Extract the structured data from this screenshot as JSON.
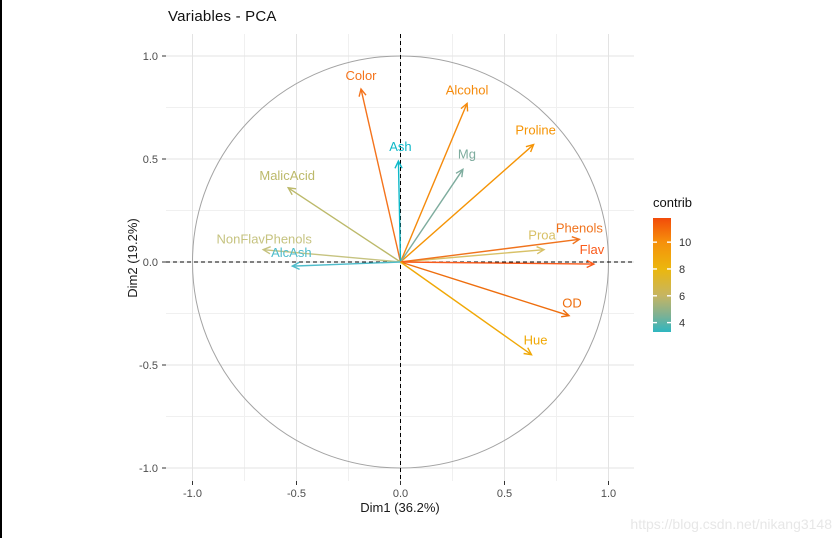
{
  "title": "Variables - PCA",
  "watermark": "https://blog.csdn.net/nikang3148",
  "chart_data": {
    "type": "scatter",
    "subtype": "pca-variable-correlation-circle",
    "title": "Variables - PCA",
    "xlabel": "Dim1 (36.2%)",
    "ylabel": "Dim2 (19.2%)",
    "xlim": [
      -1.13,
      1.12
    ],
    "ylim": [
      -1.07,
      1.11
    ],
    "grid": {
      "major": [
        -1.0,
        -0.5,
        0.0,
        0.5,
        1.0
      ],
      "minor": [
        -0.75,
        -0.25,
        0.25,
        0.75
      ]
    },
    "unit_circle": true,
    "zero_lines_dashed": true,
    "axes": {
      "x": {
        "ticks": [
          -1.0,
          -0.5,
          0.0,
          0.5,
          1.0
        ],
        "tick_labels": [
          "-1.0",
          "-0.5",
          "0.0",
          "0.5",
          "1.0"
        ]
      },
      "y": {
        "ticks": [
          1.0,
          0.5,
          0.0,
          -0.5,
          -1.0
        ],
        "tick_labels": [
          "1.0",
          "0.5",
          "0.0",
          "-0.5",
          "-1.0"
        ]
      }
    },
    "vectors": [
      {
        "name": "Color",
        "x": -0.19,
        "y": 0.84,
        "color": "#F4731C",
        "ldx": 0,
        "ldy": -9
      },
      {
        "name": "Alcohol",
        "x": 0.32,
        "y": 0.77,
        "color": "#F58A0B",
        "ldx": 0,
        "ldy": -9
      },
      {
        "name": "Proline",
        "x": 0.64,
        "y": 0.57,
        "color": "#F59405",
        "ldx": 2,
        "ldy": -10
      },
      {
        "name": "Ash",
        "x": -0.01,
        "y": 0.49,
        "color": "#0EB8C8",
        "ldx": 2,
        "ldy": -10
      },
      {
        "name": "Mg",
        "x": 0.3,
        "y": 0.45,
        "color": "#7EAC9E",
        "ldx": 4,
        "ldy": -11
      },
      {
        "name": "MalicAcid",
        "x": -0.54,
        "y": 0.36,
        "color": "#BCB96A",
        "ldx": -1,
        "ldy": -8
      },
      {
        "name": "NonFlavPhenols",
        "x": -0.66,
        "y": 0.06,
        "color": "#C6C380",
        "ldx": 1,
        "ldy": -6
      },
      {
        "name": "AlcAsh",
        "x": -0.52,
        "y": -0.02,
        "color": "#4FBCCB",
        "ldx": -1,
        "ldy": -9
      },
      {
        "name": "Proa",
        "x": 0.69,
        "y": 0.06,
        "color": "#D8C167",
        "ldx": -2,
        "ldy": -10
      },
      {
        "name": "Phenols",
        "x": 0.86,
        "y": 0.11,
        "color": "#F0731D",
        "ldx": 0,
        "ldy": -7
      },
      {
        "name": "Flav",
        "x": 0.93,
        "y": -0.01,
        "color": "#FA5A1A",
        "ldx": -2,
        "ldy": -10
      },
      {
        "name": "OD",
        "x": 0.81,
        "y": -0.26,
        "color": "#EE6E0E",
        "ldx": 3,
        "ldy": -8
      },
      {
        "name": "Hue",
        "x": 0.63,
        "y": -0.45,
        "color": "#F0A806",
        "ldx": 4,
        "ldy": -10
      }
    ],
    "legend": {
      "title": "contrib",
      "position": "right",
      "value_range": [
        3.3,
        11.8
      ],
      "ticks": [
        10,
        8,
        6,
        4
      ],
      "tick_labels": [
        "10",
        "8",
        "6",
        "4"
      ],
      "gradient_stops": [
        {
          "offset": 0.0,
          "color": "#F24B0A"
        },
        {
          "offset": 0.21,
          "color": "#F6900B"
        },
        {
          "offset": 0.45,
          "color": "#EBB70E"
        },
        {
          "offset": 0.68,
          "color": "#C6B562"
        },
        {
          "offset": 0.85,
          "color": "#7FB193"
        },
        {
          "offset": 1.0,
          "color": "#2FB6C0"
        }
      ]
    }
  }
}
